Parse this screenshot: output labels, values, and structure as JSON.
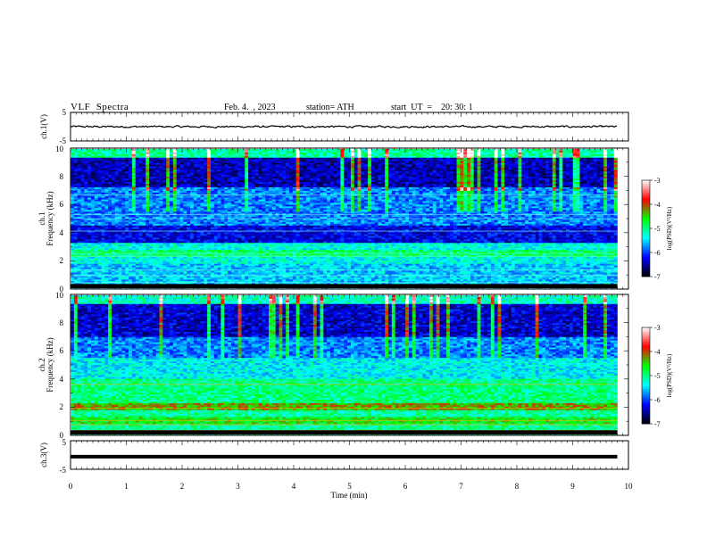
{
  "header": {
    "title": "VLF  Spectra",
    "date": "Feb. 4.  , 2023",
    "station": "station= ATH",
    "start": "start  UT  =    20: 30: 1"
  },
  "chart_data": [
    {
      "type": "line",
      "name": "ch1-waveform",
      "ylabel": "ch.1(V)",
      "ylim": [
        -5,
        5
      ],
      "ytick_labels": [
        "5",
        "-5"
      ],
      "xlim": [
        0,
        10
      ],
      "data_extent_min": 9.8,
      "approx_level": 0,
      "amplitude": "small noise around 0 V"
    },
    {
      "type": "heatmap",
      "name": "ch1-spectrogram",
      "ylabel": "Frequency  (kHz)",
      "channel_label": "ch.1",
      "ylim": [
        0,
        10
      ],
      "ytick_labels": [
        "0",
        "2",
        "4",
        "6",
        "8",
        "10"
      ],
      "xlim": [
        0,
        10
      ],
      "colorbar": {
        "label": "log(PSD)(V²/Hz)",
        "range": [
          -7,
          -3
        ],
        "tick_labels": [
          "-3",
          "-4",
          "-5",
          "-6",
          "-7"
        ],
        "colors": [
          "#000000",
          "#0000ff",
          "#00ffff",
          "#00ff00",
          "#ff0000",
          "#ffffff"
        ]
      }
    },
    {
      "type": "heatmap",
      "name": "ch2-spectrogram",
      "ylabel": "Frequency  (kHz)",
      "channel_label": "ch.2",
      "ylim": [
        0,
        10
      ],
      "ytick_labels": [
        "0",
        "2",
        "4",
        "6",
        "8",
        "10"
      ],
      "xlim": [
        0,
        10
      ],
      "colorbar": {
        "label": "log(PSD)(V²/Hz)",
        "range": [
          -7,
          -3
        ],
        "tick_labels": [
          "-3",
          "-4",
          "-5",
          "-6",
          "-7"
        ],
        "colors": [
          "#000000",
          "#0000ff",
          "#00ffff",
          "#00ff00",
          "#ff0000",
          "#ffffff"
        ]
      }
    },
    {
      "type": "line",
      "name": "ch3-waveform",
      "ylabel": "ch.3(V)",
      "ylim": [
        -5,
        5
      ],
      "ytick_labels": [
        "5",
        "-5"
      ],
      "xlim": [
        0,
        10
      ],
      "approx_level": -0.6,
      "amplitude": "flat thick line"
    }
  ],
  "xaxis": {
    "label": "Time  (min)",
    "tick_labels": [
      "0",
      "1",
      "2",
      "3",
      "4",
      "5",
      "6",
      "7",
      "8",
      "9",
      "10"
    ]
  }
}
